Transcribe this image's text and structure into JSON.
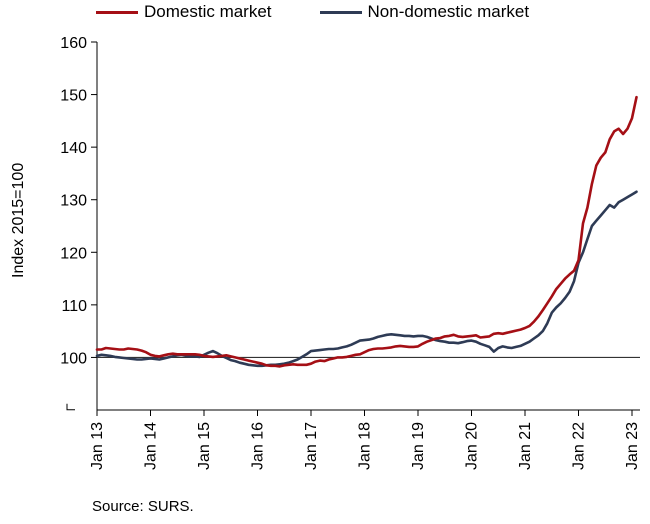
{
  "chart_data": {
    "type": "line",
    "title": "",
    "xlabel": "",
    "ylabel": "Index 2015=100",
    "ylim": [
      90,
      160
    ],
    "yticks": [
      "160",
      "150",
      "140",
      "130",
      "120",
      "110",
      "100"
    ],
    "xticks": [
      "Jan 13",
      "Jan 14",
      "Jan 15",
      "Jan 16",
      "Jan 17",
      "Jan 18",
      "Jan 19",
      "Jan 20",
      "Jan 21",
      "Jan 22",
      "Jan 23"
    ],
    "x_start": "2013-01",
    "reference_line": 100,
    "legend_position": "top",
    "series": [
      {
        "name": "Domestic market",
        "color": "#a50f15",
        "values": [
          101.5,
          101.5,
          101.8,
          101.7,
          101.6,
          101.5,
          101.5,
          101.7,
          101.6,
          101.5,
          101.3,
          101.0,
          100.5,
          100.3,
          100.2,
          100.4,
          100.6,
          100.7,
          100.6,
          100.6,
          100.6,
          100.6,
          100.6,
          100.5,
          100.3,
          100.2,
          100.1,
          100.2,
          100.3,
          100.4,
          100.2,
          100.0,
          99.8,
          99.6,
          99.4,
          99.2,
          99.0,
          98.8,
          98.5,
          98.4,
          98.4,
          98.3,
          98.5,
          98.6,
          98.7,
          98.6,
          98.6,
          98.6,
          98.8,
          99.2,
          99.4,
          99.3,
          99.6,
          99.8,
          100.0,
          100.0,
          100.1,
          100.3,
          100.5,
          100.6,
          101.0,
          101.4,
          101.6,
          101.7,
          101.7,
          101.8,
          101.9,
          102.1,
          102.2,
          102.1,
          102.0,
          102.0,
          102.1,
          102.6,
          103.0,
          103.3,
          103.6,
          103.7,
          104.0,
          104.1,
          104.3,
          104.0,
          103.9,
          104.0,
          104.1,
          104.2,
          103.8,
          103.9,
          104.0,
          104.5,
          104.6,
          104.5,
          104.7,
          104.9,
          105.1,
          105.3,
          105.6,
          106.0,
          106.8,
          107.8,
          109.0,
          110.3,
          111.6,
          113.0,
          114.0,
          115.0,
          115.8,
          116.5,
          118.5,
          125.5,
          128.5,
          133.0,
          136.5,
          138.0,
          139.0,
          141.5,
          143.0,
          143.5,
          142.5,
          143.5,
          145.5,
          149.5
        ]
      },
      {
        "name": "Non-domestic market",
        "color": "#2e3b55",
        "values": [
          100.3,
          100.5,
          100.4,
          100.3,
          100.1,
          100.0,
          99.9,
          99.8,
          99.7,
          99.6,
          99.6,
          99.7,
          99.8,
          99.7,
          99.6,
          99.8,
          100.0,
          100.2,
          100.4,
          100.5,
          100.3,
          100.2,
          100.2,
          100.1,
          100.5,
          100.9,
          101.2,
          100.8,
          100.3,
          99.9,
          99.5,
          99.3,
          99.0,
          98.8,
          98.6,
          98.5,
          98.4,
          98.4,
          98.5,
          98.6,
          98.6,
          98.7,
          98.8,
          99.0,
          99.3,
          99.6,
          100.1,
          100.6,
          101.2,
          101.3,
          101.4,
          101.5,
          101.6,
          101.6,
          101.7,
          101.9,
          102.1,
          102.4,
          102.8,
          103.2,
          103.3,
          103.4,
          103.6,
          103.9,
          104.1,
          104.3,
          104.4,
          104.3,
          104.2,
          104.1,
          104.1,
          104.0,
          104.1,
          104.1,
          103.9,
          103.6,
          103.3,
          103.1,
          103.0,
          102.8,
          102.8,
          102.7,
          102.9,
          103.1,
          103.2,
          103.0,
          102.6,
          102.3,
          102.0,
          101.1,
          101.8,
          102.1,
          101.9,
          101.8,
          102.0,
          102.2,
          102.6,
          103.0,
          103.6,
          104.2,
          105.0,
          106.5,
          108.5,
          109.5,
          110.3,
          111.3,
          112.5,
          114.5,
          118.0,
          120.0,
          122.5,
          125.0,
          126.0,
          127.0,
          128.0,
          129.0,
          128.5,
          129.5,
          130.0,
          130.5,
          131.0,
          131.5
        ]
      }
    ],
    "source": "Source: SURS."
  }
}
